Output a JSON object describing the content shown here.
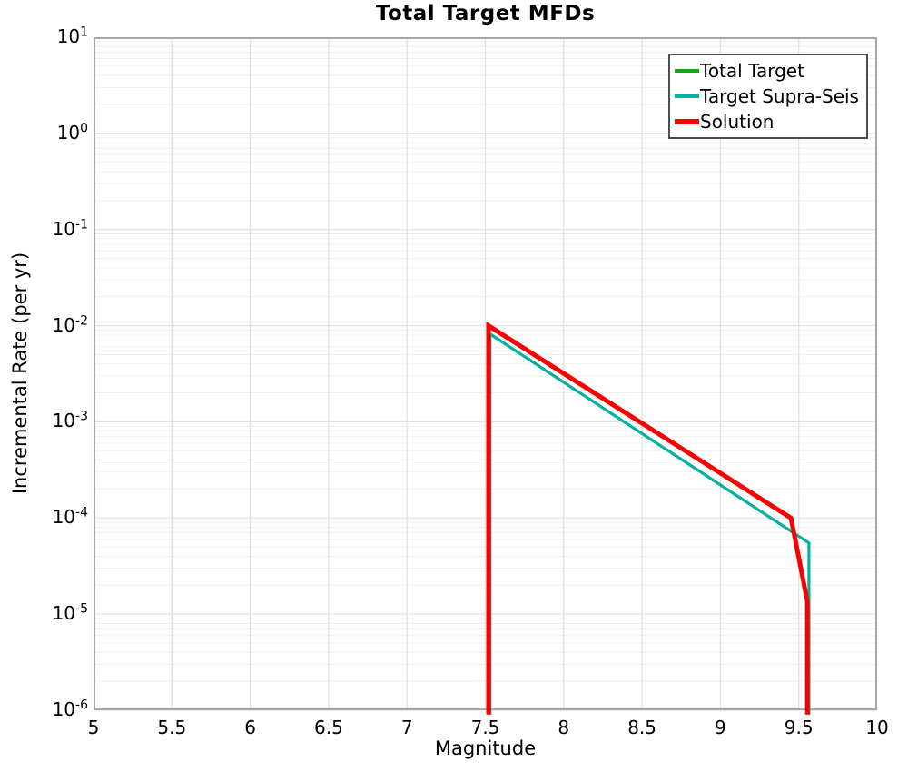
{
  "chart_data": {
    "type": "line",
    "title": "Total Target MFDs",
    "xlabel": "Magnitude",
    "ylabel": "Incremental Rate (per yr)",
    "x_axis": {
      "min": 5,
      "max": 10,
      "ticks": [
        5,
        5.5,
        6,
        6.5,
        7,
        7.5,
        8,
        8.5,
        9,
        9.5,
        10
      ]
    },
    "y_axis": {
      "scale": "log",
      "min": 1e-06,
      "max": 10,
      "tick_exponents": [
        1,
        0,
        -1,
        -2,
        -3,
        -4,
        -5,
        -6
      ]
    },
    "grid": {
      "major_color": "#e2e2e2",
      "minor_color": "#f0f0f0",
      "vertical_color": "#e2e2e2"
    },
    "plot_border_color": "#a8a8a8",
    "legend": {
      "position": "top-right",
      "border_color": "#4d4d4d",
      "background": "#ffffff",
      "entries": [
        "Total Target",
        "Target Supra-Seis",
        "Solution"
      ]
    },
    "series": [
      {
        "name": "Total Target",
        "color": "#19a319",
        "line_width": 3,
        "points": [
          [
            7.53,
            9e-07
          ],
          [
            7.53,
            0.0082
          ],
          [
            9.565,
            5.5e-05
          ],
          [
            9.565,
            9e-07
          ]
        ]
      },
      {
        "name": "Target Supra-Seis",
        "color": "#00b1a5",
        "line_width": 3,
        "points": [
          [
            7.53,
            9e-07
          ],
          [
            7.53,
            0.0082
          ],
          [
            9.565,
            5.5e-05
          ],
          [
            9.565,
            9e-07
          ]
        ]
      },
      {
        "name": "Solution",
        "color": "#fa0000",
        "line_width": 5,
        "points": [
          [
            7.52,
            9e-07
          ],
          [
            7.52,
            0.01
          ],
          [
            9.45,
            0.0001
          ],
          [
            9.555,
            1.35e-05
          ],
          [
            9.555,
            9e-07
          ]
        ]
      }
    ]
  }
}
